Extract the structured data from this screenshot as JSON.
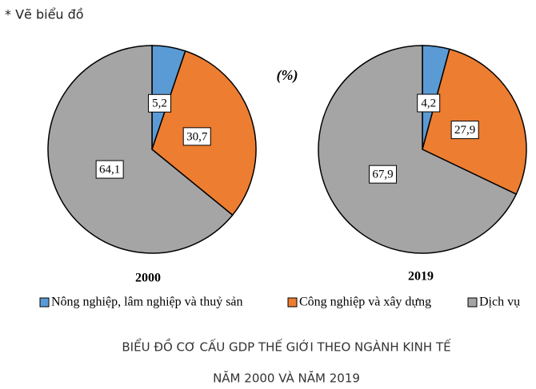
{
  "chart_data": {
    "type": "pie",
    "note": "* Vẽ biểu đồ",
    "unit": "(%)",
    "title": "BIỂU ĐỒ CƠ CẤU GDP THẾ GIỚI THEO NGÀNH KINH TẾ",
    "subtitle": "NĂM 2000 VÀ NĂM 2019",
    "categories": [
      "Nông nghiệp, lâm nghiệp và thuỷ sản",
      "Công nghiệp và xây dựng",
      "Dịch vụ"
    ],
    "colors": [
      "#5b9bd5",
      "#ed7d31",
      "#a5a5a5"
    ],
    "series": [
      {
        "name": "2000",
        "values": [
          5.2,
          30.7,
          64.1
        ],
        "value_labels": [
          "5,2",
          "30,7",
          "64,1"
        ]
      },
      {
        "name": "2019",
        "values": [
          4.2,
          27.9,
          67.9
        ],
        "value_labels": [
          "4,2",
          "27,9",
          "67,9"
        ]
      }
    ]
  }
}
